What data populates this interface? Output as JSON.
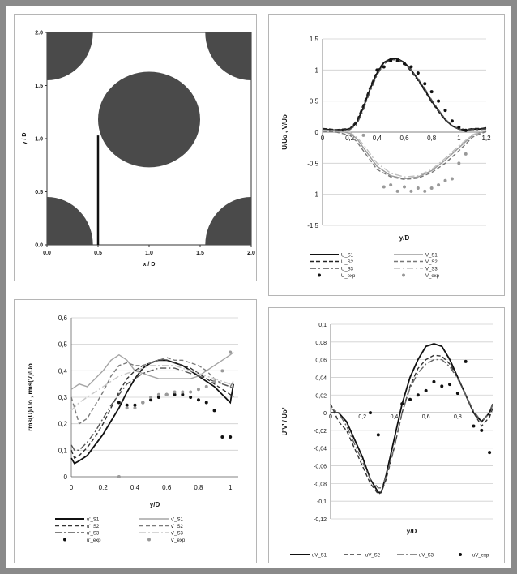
{
  "chart_data": [
    {
      "type": "diagram",
      "xlabel": "x / D",
      "ylabel": "y / D",
      "xlim": [
        0,
        2
      ],
      "ylim": [
        0,
        2
      ],
      "xticks": [
        "0.0",
        "0.5",
        "1.0",
        "1.5",
        "2.0"
      ],
      "yticks": [
        "0.0",
        "0.5",
        "1.0",
        "1.5",
        "2.0"
      ],
      "cylinders": [
        {
          "cx": 0,
          "cy": 0,
          "r": 0.45
        },
        {
          "cx": 2,
          "cy": 0,
          "r": 0.45
        },
        {
          "cx": 0,
          "cy": 2,
          "r": 0.45
        },
        {
          "cx": 2,
          "cy": 2,
          "r": 0.45
        },
        {
          "cx": 1,
          "cy": 1.18,
          "rx": 0.5,
          "ry": 0.45
        }
      ],
      "line": {
        "x": 0.5,
        "y0": 0,
        "y1": 1.03
      }
    },
    {
      "type": "line",
      "xlabel": "y/D",
      "ylabel": "U/Uo , V/Uo",
      "xlim": [
        0,
        1.2
      ],
      "ylim": [
        -1.5,
        1.5
      ],
      "yticks": [
        "1,5",
        "1",
        "0,5",
        "0",
        "-0,5",
        "-1",
        "-1,5"
      ],
      "xticks": [
        "0",
        "0,2",
        "0,4",
        "0,6",
        "0,8",
        "1",
        "1,2"
      ],
      "series": [
        {
          "name": "U_S1",
          "color": "#111111",
          "dash": "",
          "x": [
            0,
            0.1,
            0.2,
            0.25,
            0.3,
            0.35,
            0.4,
            0.45,
            0.5,
            0.55,
            0.6,
            0.65,
            0.7,
            0.75,
            0.8,
            0.85,
            0.9,
            0.95,
            1.0,
            1.05,
            1.1,
            1.15,
            1.2
          ],
          "y": [
            0.05,
            0.03,
            0.05,
            0.15,
            0.4,
            0.7,
            0.95,
            1.12,
            1.18,
            1.18,
            1.12,
            1.0,
            0.85,
            0.68,
            0.5,
            0.35,
            0.2,
            0.1,
            0.05,
            0.03,
            0.05,
            0.05,
            0.07
          ]
        },
        {
          "name": "V_S1",
          "color": "#9a9a9a",
          "dash": "",
          "x": [
            0,
            0.1,
            0.2,
            0.25,
            0.3,
            0.35,
            0.4,
            0.5,
            0.6,
            0.7,
            0.8,
            0.9,
            1.0,
            1.1,
            1.2
          ],
          "y": [
            0.02,
            0.03,
            -0.02,
            -0.1,
            -0.25,
            -0.4,
            -0.55,
            -0.7,
            -0.75,
            -0.72,
            -0.62,
            -0.45,
            -0.25,
            -0.05,
            0.02
          ]
        },
        {
          "name": "U_S2",
          "color": "#222222",
          "dash": "5,3",
          "x": [
            0,
            0.1,
            0.2,
            0.25,
            0.3,
            0.35,
            0.4,
            0.45,
            0.5,
            0.55,
            0.6,
            0.65,
            0.7,
            0.75,
            0.8,
            0.85,
            0.9,
            0.95,
            1.0,
            1.05,
            1.1,
            1.15,
            1.2
          ],
          "y": [
            0.06,
            0.04,
            0.06,
            0.18,
            0.45,
            0.74,
            0.98,
            1.13,
            1.17,
            1.16,
            1.1,
            0.98,
            0.83,
            0.66,
            0.48,
            0.33,
            0.19,
            0.1,
            0.06,
            0.04,
            0.06,
            0.06,
            0.06
          ]
        },
        {
          "name": "V_S2",
          "color": "#777777",
          "dash": "5,3",
          "x": [
            0,
            0.1,
            0.2,
            0.25,
            0.3,
            0.35,
            0.4,
            0.5,
            0.6,
            0.7,
            0.8,
            0.9,
            1.0,
            1.1,
            1.2
          ],
          "y": [
            0.02,
            0.0,
            -0.05,
            -0.15,
            -0.3,
            -0.45,
            -0.6,
            -0.72,
            -0.76,
            -0.74,
            -0.65,
            -0.5,
            -0.3,
            -0.08,
            0.01
          ]
        },
        {
          "name": "U_S3",
          "color": "#555555",
          "dash": "8,3,2,3",
          "x": [
            0,
            0.1,
            0.2,
            0.25,
            0.3,
            0.35,
            0.4,
            0.45,
            0.5,
            0.55,
            0.6,
            0.65,
            0.7,
            0.75,
            0.8,
            0.85,
            0.9,
            0.95,
            1.0,
            1.05,
            1.1,
            1.15,
            1.2
          ],
          "y": [
            0.04,
            0.02,
            0.04,
            0.12,
            0.36,
            0.66,
            0.92,
            1.1,
            1.16,
            1.17,
            1.11,
            1.0,
            0.86,
            0.7,
            0.52,
            0.36,
            0.21,
            0.11,
            0.05,
            0.03,
            0.04,
            0.04,
            0.05
          ]
        },
        {
          "name": "V_S3",
          "color": "#c0c0c0",
          "dash": "8,3,2,3",
          "x": [
            0,
            0.1,
            0.2,
            0.25,
            0.3,
            0.35,
            0.4,
            0.5,
            0.6,
            0.7,
            0.8,
            0.9,
            1.0,
            1.1,
            1.2
          ],
          "y": [
            0.03,
            0.02,
            0.0,
            -0.08,
            -0.2,
            -0.35,
            -0.5,
            -0.66,
            -0.72,
            -0.7,
            -0.6,
            -0.42,
            -0.22,
            -0.04,
            0.03
          ]
        },
        {
          "name": "U_exp",
          "color": "#111111",
          "marker": "dot",
          "x": [
            0.4,
            0.45,
            0.5,
            0.55,
            0.6,
            0.65,
            0.7,
            0.75,
            0.8,
            0.85,
            0.9,
            0.95,
            1.0,
            1.05
          ],
          "y": [
            1.0,
            1.05,
            1.15,
            1.15,
            1.1,
            1.05,
            0.95,
            0.78,
            0.65,
            0.5,
            0.35,
            0.18,
            0.08,
            0.03
          ]
        },
        {
          "name": "V_exp",
          "color": "#999999",
          "marker": "dot",
          "x": [
            0.3,
            0.45,
            0.5,
            0.55,
            0.6,
            0.65,
            0.7,
            0.75,
            0.8,
            0.85,
            0.9,
            0.95,
            1.0,
            1.05
          ],
          "y": [
            -0.05,
            -0.88,
            -0.85,
            -0.95,
            -0.88,
            -0.95,
            -0.9,
            -0.95,
            -0.9,
            -0.85,
            -0.78,
            -0.75,
            -0.5,
            -0.35
          ]
        }
      ],
      "legend": {
        "columns": 2,
        "position": "bottom"
      }
    },
    {
      "type": "line",
      "xlabel": "y/D",
      "ylabel": "rms(U)/Uo , rms(V)/Uo",
      "xlim": [
        0,
        1.05
      ],
      "ylim": [
        0,
        0.6
      ],
      "yticks": [
        "0,6",
        "0,5",
        "0,4",
        "0,3",
        "0,2",
        "0,1",
        "0"
      ],
      "xticks": [
        "0",
        "0,2",
        "0,4",
        "0,6",
        "0,8",
        "1"
      ],
      "series": [
        {
          "name": "u'_S1",
          "color": "#111111",
          "dash": "",
          "x": [
            0,
            0.02,
            0.05,
            0.1,
            0.15,
            0.2,
            0.25,
            0.3,
            0.35,
            0.4,
            0.45,
            0.5,
            0.55,
            0.6,
            0.65,
            0.7,
            0.75,
            0.8,
            0.85,
            0.9,
            0.95,
            1.0,
            1.02
          ],
          "y": [
            0.07,
            0.05,
            0.06,
            0.08,
            0.12,
            0.16,
            0.21,
            0.26,
            0.32,
            0.37,
            0.41,
            0.43,
            0.44,
            0.44,
            0.43,
            0.42,
            0.4,
            0.38,
            0.36,
            0.34,
            0.31,
            0.28,
            0.35
          ]
        },
        {
          "name": "v'_S1",
          "color": "#a5a5a5",
          "dash": "",
          "x": [
            0,
            0.05,
            0.1,
            0.15,
            0.2,
            0.25,
            0.3,
            0.35,
            0.4,
            0.45,
            0.5,
            0.55,
            0.6,
            0.65,
            0.7,
            0.75,
            0.8,
            0.85,
            0.9,
            0.95,
            1.0,
            1.02
          ],
          "y": [
            0.33,
            0.35,
            0.34,
            0.37,
            0.4,
            0.44,
            0.46,
            0.44,
            0.4,
            0.39,
            0.38,
            0.37,
            0.37,
            0.37,
            0.37,
            0.37,
            0.38,
            0.4,
            0.42,
            0.44,
            0.46,
            0.47
          ]
        },
        {
          "name": "u'_S2",
          "color": "#333333",
          "dash": "5,3",
          "x": [
            0,
            0.02,
            0.05,
            0.1,
            0.15,
            0.2,
            0.25,
            0.3,
            0.35,
            0.4,
            0.45,
            0.5,
            0.55,
            0.6,
            0.65,
            0.7,
            0.75,
            0.8,
            0.85,
            0.9,
            0.95,
            1.0,
            1.02
          ],
          "y": [
            0.1,
            0.07,
            0.08,
            0.11,
            0.15,
            0.2,
            0.26,
            0.32,
            0.37,
            0.4,
            0.42,
            0.43,
            0.44,
            0.44,
            0.43,
            0.42,
            0.41,
            0.39,
            0.37,
            0.35,
            0.33,
            0.31,
            0.3
          ]
        },
        {
          "name": "v'_S2",
          "color": "#7a7a7a",
          "dash": "5,3",
          "x": [
            0,
            0.05,
            0.1,
            0.15,
            0.2,
            0.25,
            0.3,
            0.35,
            0.4,
            0.45,
            0.5,
            0.55,
            0.6,
            0.65,
            0.7,
            0.75,
            0.8,
            0.85,
            0.9,
            0.95,
            1.0,
            1.02
          ],
          "y": [
            0.3,
            0.2,
            0.22,
            0.27,
            0.32,
            0.38,
            0.42,
            0.43,
            0.42,
            0.42,
            0.43,
            0.44,
            0.45,
            0.44,
            0.44,
            0.43,
            0.42,
            0.4,
            0.37,
            0.35,
            0.34,
            0.36
          ]
        },
        {
          "name": "u'_S3",
          "color": "#555555",
          "dash": "8,3,2,3",
          "x": [
            0,
            0.02,
            0.05,
            0.1,
            0.15,
            0.2,
            0.25,
            0.3,
            0.35,
            0.4,
            0.45,
            0.5,
            0.55,
            0.6,
            0.65,
            0.7,
            0.75,
            0.8,
            0.85,
            0.9,
            0.95,
            1.0,
            1.02
          ],
          "y": [
            0.12,
            0.1,
            0.1,
            0.13,
            0.17,
            0.22,
            0.27,
            0.31,
            0.35,
            0.37,
            0.39,
            0.4,
            0.41,
            0.41,
            0.41,
            0.4,
            0.39,
            0.38,
            0.37,
            0.36,
            0.35,
            0.34,
            0.33
          ]
        },
        {
          "name": "v'_S3",
          "color": "#c8c8c8",
          "dash": "8,3,2,3",
          "x": [
            0,
            0.05,
            0.1,
            0.15,
            0.2,
            0.25,
            0.3,
            0.35,
            0.4,
            0.45,
            0.5,
            0.55,
            0.6,
            0.65,
            0.7,
            0.75,
            0.8,
            0.85,
            0.9,
            0.95,
            1.0,
            1.02
          ],
          "y": [
            0.25,
            0.28,
            0.3,
            0.32,
            0.34,
            0.36,
            0.38,
            0.39,
            0.4,
            0.41,
            0.42,
            0.42,
            0.42,
            0.42,
            0.41,
            0.4,
            0.39,
            0.38,
            0.37,
            0.36,
            0.35,
            0.36
          ]
        },
        {
          "name": "u'_exp",
          "color": "#111111",
          "marker": "dot",
          "x": [
            0.3,
            0.35,
            0.4,
            0.45,
            0.5,
            0.55,
            0.6,
            0.65,
            0.7,
            0.75,
            0.8,
            0.85,
            0.9,
            0.95,
            1.0
          ],
          "y": [
            0.28,
            0.27,
            0.27,
            0.28,
            0.29,
            0.3,
            0.31,
            0.31,
            0.31,
            0.3,
            0.29,
            0.28,
            0.25,
            0.15,
            0.15
          ]
        },
        {
          "name": "v'_exp",
          "color": "#9a9a9a",
          "marker": "dot",
          "x": [
            0.3,
            0.35,
            0.4,
            0.45,
            0.5,
            0.55,
            0.6,
            0.65,
            0.7,
            0.75,
            0.8,
            0.85,
            0.9,
            0.95,
            1.0
          ],
          "y": [
            0.0,
            0.26,
            0.26,
            0.28,
            0.3,
            0.31,
            0.31,
            0.32,
            0.32,
            0.32,
            0.33,
            0.34,
            0.36,
            0.4,
            0.47
          ]
        }
      ],
      "legend": {
        "columns": 2,
        "position": "bottom"
      }
    },
    {
      "type": "line",
      "xlabel": "y/D",
      "ylabel": "U'V' / Uo²",
      "xlim": [
        0,
        1.02
      ],
      "ylim": [
        -0.12,
        0.1
      ],
      "yticks": [
        "0,1",
        "0,08",
        "0,06",
        "0,04",
        "0,02",
        "0",
        "-0,02",
        "-0,04",
        "-0,06",
        "-0,08",
        "-0,1",
        "-0,12"
      ],
      "xticks": [
        "0",
        "0,2",
        "0,4",
        "0,6",
        "0,8",
        "1"
      ],
      "series": [
        {
          "name": "uV_S1",
          "color": "#111111",
          "dash": "",
          "x": [
            0,
            0.05,
            0.1,
            0.15,
            0.2,
            0.25,
            0.3,
            0.32,
            0.35,
            0.4,
            0.45,
            0.5,
            0.55,
            0.6,
            0.65,
            0.7,
            0.75,
            0.8,
            0.85,
            0.9,
            0.95,
            1.0,
            1.02
          ],
          "y": [
            0,
            0.0,
            -0.01,
            -0.03,
            -0.05,
            -0.075,
            -0.09,
            -0.09,
            -0.07,
            -0.03,
            0.01,
            0.04,
            0.06,
            0.075,
            0.078,
            0.075,
            0.06,
            0.04,
            0.02,
            0.0,
            -0.01,
            0.0,
            0.01
          ]
        },
        {
          "name": "uV_S2",
          "color": "#333333",
          "dash": "5,3",
          "x": [
            0,
            0.05,
            0.1,
            0.15,
            0.2,
            0.25,
            0.3,
            0.32,
            0.35,
            0.4,
            0.45,
            0.5,
            0.55,
            0.6,
            0.65,
            0.7,
            0.75,
            0.8,
            0.85,
            0.9,
            0.95,
            1.0,
            1.02
          ],
          "y": [
            0.01,
            -0.01,
            -0.02,
            -0.04,
            -0.06,
            -0.08,
            -0.092,
            -0.09,
            -0.075,
            -0.04,
            0.0,
            0.03,
            0.05,
            0.06,
            0.065,
            0.064,
            0.055,
            0.04,
            0.02,
            0.0,
            -0.015,
            -0.005,
            0.005
          ]
        },
        {
          "name": "uV_S3",
          "color": "#666666",
          "dash": "8,3,2,3",
          "x": [
            0,
            0.05,
            0.1,
            0.15,
            0.2,
            0.25,
            0.3,
            0.32,
            0.35,
            0.4,
            0.45,
            0.5,
            0.55,
            0.6,
            0.65,
            0.7,
            0.75,
            0.8,
            0.85,
            0.9,
            0.95,
            1.0,
            1.02
          ],
          "y": [
            0.005,
            0.0,
            -0.015,
            -0.035,
            -0.055,
            -0.075,
            -0.085,
            -0.085,
            -0.072,
            -0.04,
            0.0,
            0.028,
            0.045,
            0.055,
            0.06,
            0.06,
            0.052,
            0.038,
            0.02,
            0.002,
            -0.01,
            0.0,
            0.01
          ]
        },
        {
          "name": "uV_exp",
          "color": "#111111",
          "marker": "dot",
          "x": [
            0.25,
            0.3,
            0.45,
            0.5,
            0.55,
            0.6,
            0.65,
            0.7,
            0.75,
            0.8,
            0.85,
            0.9,
            0.95,
            1.0
          ],
          "y": [
            0.0,
            -0.025,
            0.01,
            0.015,
            0.02,
            0.025,
            0.035,
            0.03,
            0.032,
            0.022,
            0.058,
            -0.015,
            -0.02,
            -0.045
          ]
        }
      ],
      "legend": {
        "columns": 4,
        "position": "bottom"
      }
    }
  ]
}
